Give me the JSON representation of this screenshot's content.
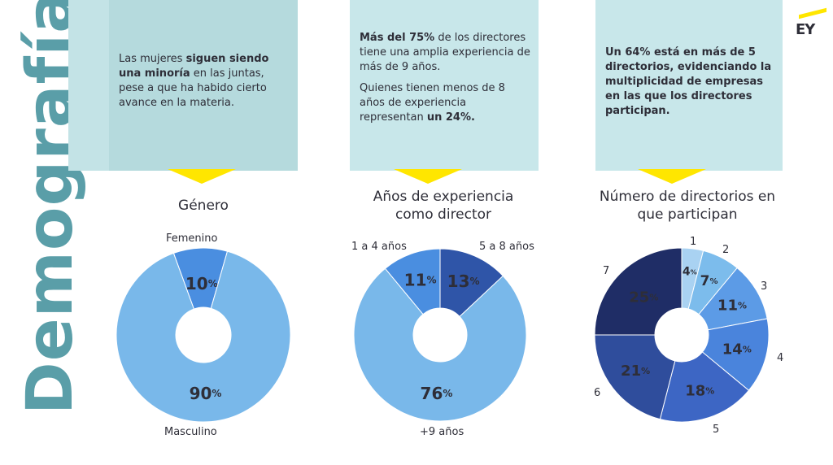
{
  "side_title": "Demografía",
  "logo": "EY",
  "panels": [
    {
      "parts": [
        {
          "t": "Las mujeres ",
          "b": false
        },
        {
          "t": "siguen siendo una minoría",
          "b": true
        },
        {
          "t": " en las juntas, pese a que ha habido cierto avance en la materia.",
          "b": false
        }
      ]
    },
    {
      "parts": [
        {
          "t": "Más del 75%",
          "b": true
        },
        {
          "t": " de los directores tiene una amplia experiencia de más de 9 años.",
          "b": false
        },
        {
          "t": "\n",
          "b": false
        },
        {
          "t": "Quienes tienen menos de 8 años de experiencia representan ",
          "b": false
        },
        {
          "t": "un 24%.",
          "b": true
        }
      ]
    },
    {
      "parts": [
        {
          "t": "Un 64% está en más de 5 directorios, evidenciando la multiplicidad de empresas en las que los directores participan.",
          "b": true
        }
      ]
    }
  ],
  "chart_data": [
    {
      "type": "pie",
      "title": "Género",
      "categories": [
        "Femenino",
        "Masculino"
      ],
      "values": [
        10,
        90
      ],
      "colors": [
        "#4a8ee0",
        "#79b8ea"
      ]
    },
    {
      "type": "pie",
      "title": "Años de experiencia como director",
      "categories": [
        "1 a 4 años",
        "5 a 8 años",
        "+9 años"
      ],
      "values": [
        11,
        13,
        76
      ],
      "colors": [
        "#4a8ee0",
        "#2f55a8",
        "#79b8ea"
      ]
    },
    {
      "type": "pie",
      "title": "Número de directorios en que participan",
      "categories": [
        "1",
        "2",
        "3",
        "4",
        "5",
        "6",
        "7"
      ],
      "values": [
        4,
        7,
        11,
        14,
        18,
        21,
        25
      ],
      "colors": [
        "#a9d2f2",
        "#7cbcec",
        "#5c9be6",
        "#4a84dc",
        "#3d66c4",
        "#2f4d9c",
        "#1f2d66"
      ]
    }
  ]
}
